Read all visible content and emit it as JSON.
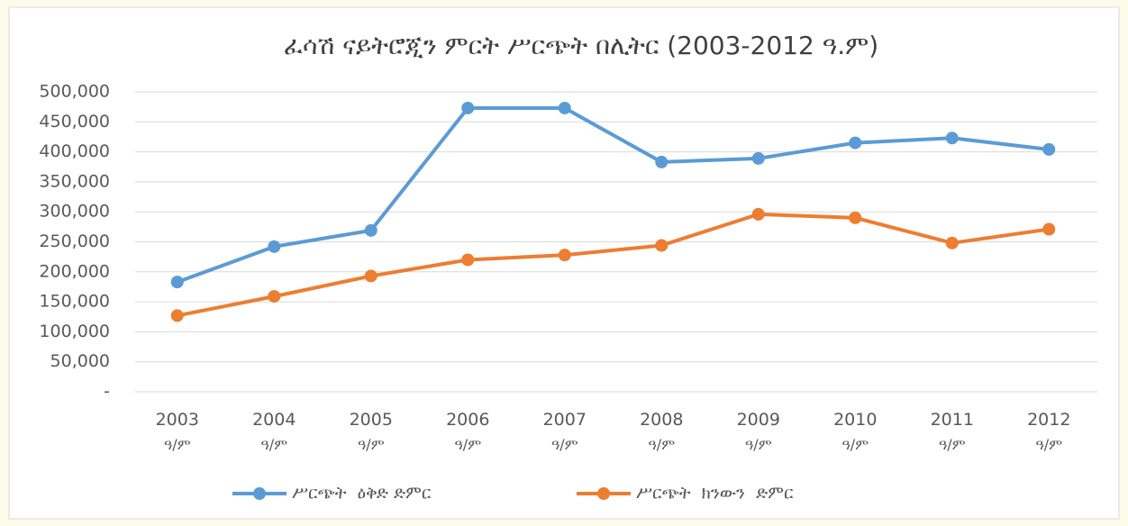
{
  "chart_data": {
    "type": "line",
    "title": "ፈሳሽ ናይትሮጂን ምርት ሥርጭት በሊትር (2003-2012 ዓ.ም)",
    "categories": [
      "2003 ዓ/ም",
      "2004 ዓ/ም",
      "2005 ዓ/ም",
      "2006 ዓ/ም",
      "2007 ዓ/ም",
      "2008 ዓ/ም",
      "2009 ዓ/ም",
      "2010 ዓ/ም",
      "2011 ዓ/ም",
      "2012 ዓ/ም"
    ],
    "series": [
      {
        "name": "ሥርጭት  ዕቅድ ድምር",
        "color": "#5b9bd5",
        "values": [
          183000,
          242000,
          269000,
          473000,
          473000,
          383000,
          389000,
          415000,
          423000,
          404000
        ]
      },
      {
        "name": "ሥርጭት  ክንውን  ድምር",
        "color": "#ed7d31",
        "values": [
          127000,
          159000,
          193000,
          220000,
          228000,
          244000,
          296000,
          290000,
          248000,
          271000
        ]
      }
    ],
    "ylim": [
      0,
      500000
    ],
    "yticks": [
      {
        "value": 0,
        "label": "-"
      },
      {
        "value": 50000,
        "label": "50,000"
      },
      {
        "value": 100000,
        "label": "100,000"
      },
      {
        "value": 150000,
        "label": "150,000"
      },
      {
        "value": 200000,
        "label": "200,000"
      },
      {
        "value": 250000,
        "label": "250,000"
      },
      {
        "value": 300000,
        "label": "300,000"
      },
      {
        "value": 350000,
        "label": "350,000"
      },
      {
        "value": 400000,
        "label": "400,000"
      },
      {
        "value": 450000,
        "label": "450,000"
      },
      {
        "value": 500000,
        "label": "500,000"
      }
    ],
    "grid": true,
    "legend": "bottom"
  }
}
